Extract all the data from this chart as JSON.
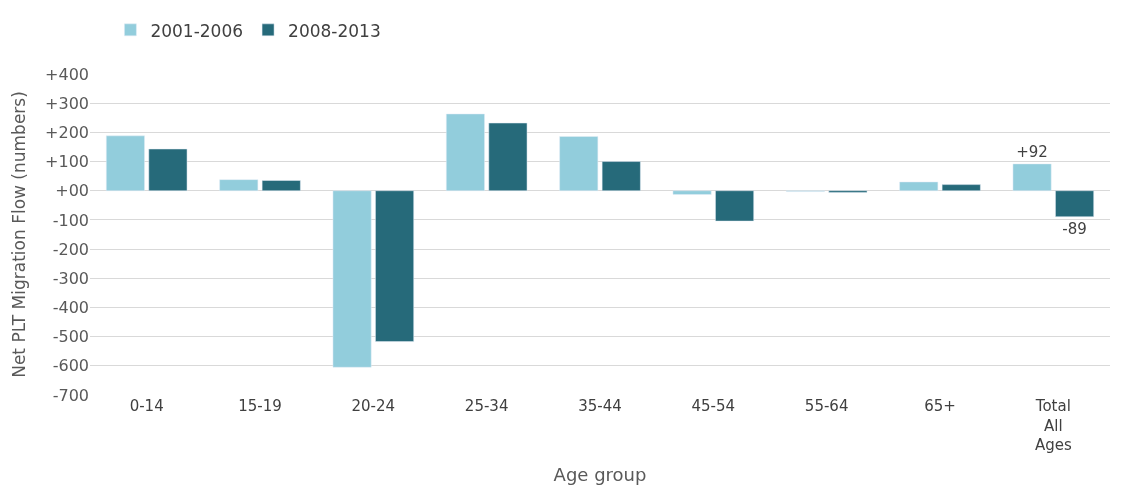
{
  "chart_data": {
    "type": "bar",
    "categories": [
      "0-14",
      "15-19",
      "20-24",
      "25-34",
      "35-44",
      "45-54",
      "55-64",
      "65+",
      "Total All Ages"
    ],
    "xlabel": "Age group",
    "ylabel": "Net PLT Migration Flow (numbers)",
    "series": [
      {
        "name": "2001-2006",
        "color": "#92cddc",
        "values": [
          188,
          38,
          -605,
          263,
          186,
          -13,
          -3,
          30,
          92
        ],
        "value_labels": [
          null,
          null,
          null,
          null,
          null,
          null,
          null,
          null,
          "+92"
        ]
      },
      {
        "name": "2008-2013",
        "color": "#266a7a",
        "values": [
          143,
          35,
          -517,
          232,
          100,
          -104,
          -6,
          21,
          -89
        ],
        "value_labels": [
          null,
          null,
          null,
          null,
          null,
          null,
          null,
          null,
          "-89"
        ]
      }
    ],
    "ylim": [
      -700,
      400
    ],
    "yticks": [
      {
        "value": 400,
        "label": "+400"
      },
      {
        "value": 300,
        "label": "+300"
      },
      {
        "value": 200,
        "label": "+200"
      },
      {
        "value": 100,
        "label": "+100"
      },
      {
        "value": 0,
        "label": "+00"
      },
      -100,
      -200,
      -300,
      -400,
      -500,
      -600,
      -700
    ],
    "grid": "y",
    "legend": "top"
  }
}
